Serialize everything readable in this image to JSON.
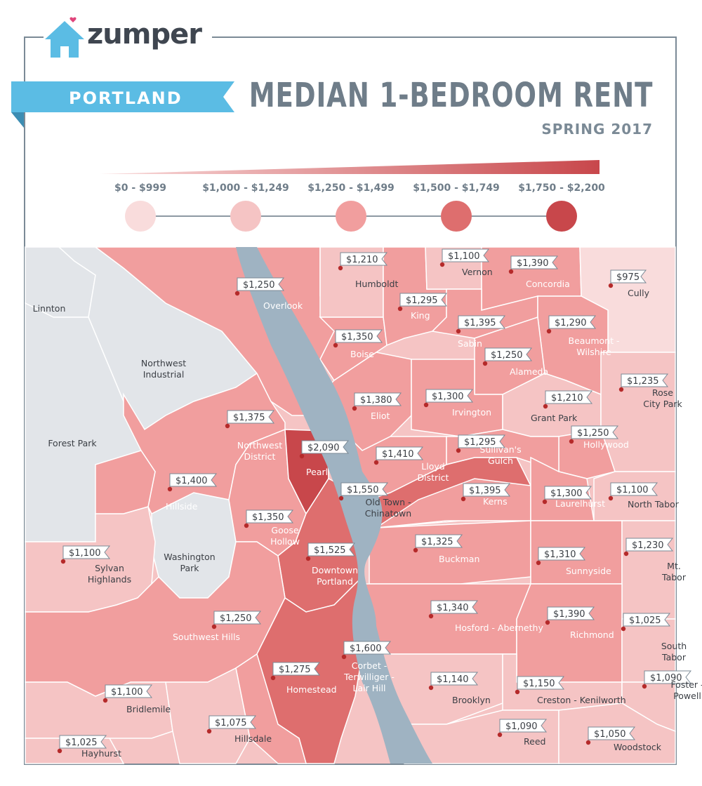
{
  "brand": {
    "name": "zumper"
  },
  "banner": {
    "city": "PORTLAND"
  },
  "header": {
    "title": "MEDIAN 1-BEDROOM RENT",
    "subtitle": "SPRING 2017"
  },
  "legend": {
    "bins": [
      {
        "label": "$0 - $999",
        "color": "#f9dcdc"
      },
      {
        "label": "$1,000 - $1,249",
        "color": "#f5c4c4"
      },
      {
        "label": "$1,250 - $1,499",
        "color": "#f19e9e"
      },
      {
        "label": "$1,500 - $1,749",
        "color": "#de6e6e"
      },
      {
        "label": "$1,750 - $2,200",
        "color": "#c8474b"
      }
    ]
  },
  "colors": {
    "neutral": "#e2e5e9",
    "river": "#9fb3c2",
    "brand_blue": "#5bbce4",
    "heading": "#6f7d89"
  },
  "unlabeled_areas": [
    "Linnton",
    "Northwest Industrial",
    "Forest Park",
    "Washington Park"
  ],
  "neighborhoods": [
    {
      "name": "Overlook",
      "price": "$1,250",
      "bin": 2
    },
    {
      "name": "Humboldt",
      "price": "$1,210",
      "bin": 1
    },
    {
      "name": "Vernon",
      "price": "$1,100",
      "bin": 1
    },
    {
      "name": "Concordia",
      "price": "$1,390",
      "bin": 2
    },
    {
      "name": "Cully",
      "price": "$975",
      "bin": 0
    },
    {
      "name": "King",
      "price": "$1,295",
      "bin": 2
    },
    {
      "name": "Boise",
      "price": "$1,350",
      "bin": 2
    },
    {
      "name": "Sabin",
      "price": "$1,395",
      "bin": 2
    },
    {
      "name": "Beaumont - Wilshire",
      "price": "$1,290",
      "bin": 2
    },
    {
      "name": "Alameda",
      "price": "$1,250",
      "bin": 2
    },
    {
      "name": "Eliot",
      "price": "$1,380",
      "bin": 2
    },
    {
      "name": "Irvington",
      "price": "$1,300",
      "bin": 2
    },
    {
      "name": "Rose City Park",
      "price": "$1,235",
      "bin": 1
    },
    {
      "name": "Grant Park",
      "price": "$1,210",
      "bin": 1
    },
    {
      "name": "Hollywood",
      "price": "$1,250",
      "bin": 2
    },
    {
      "name": "Northwest District",
      "price": "$1,375",
      "bin": 2
    },
    {
      "name": "Pearl",
      "price": "$2,090",
      "bin": 4
    },
    {
      "name": "Lloyd District",
      "price": "$1,410",
      "bin": 2
    },
    {
      "name": "Sullivan's Gulch",
      "price": "$1,295",
      "bin": 2
    },
    {
      "name": "Hillside",
      "price": "$1,400",
      "bin": 2
    },
    {
      "name": "Old Town - Chinatown",
      "price": "$1,550",
      "bin": 3
    },
    {
      "name": "Kerns",
      "price": "$1,395",
      "bin": 2
    },
    {
      "name": "Laurelhurst",
      "price": "$1,300",
      "bin": 2
    },
    {
      "name": "North Tabor",
      "price": "$1,100",
      "bin": 1
    },
    {
      "name": "Goose Hollow",
      "price": "$1,350",
      "bin": 2
    },
    {
      "name": "Downtown Portland",
      "price": "$1,525",
      "bin": 3
    },
    {
      "name": "Buckman",
      "price": "$1,325",
      "bin": 2
    },
    {
      "name": "Sunnyside",
      "price": "$1,310",
      "bin": 2
    },
    {
      "name": "Mt. Tabor",
      "price": "$1,230",
      "bin": 1
    },
    {
      "name": "Sylvan Highlands",
      "price": "$1,100",
      "bin": 1
    },
    {
      "name": "Hosford - Abernethy",
      "price": "$1,340",
      "bin": 2
    },
    {
      "name": "Richmond",
      "price": "$1,390",
      "bin": 2
    },
    {
      "name": "South Tabor",
      "price": "$1,025",
      "bin": 1
    },
    {
      "name": "Southwest Hills",
      "price": "$1,250",
      "bin": 2
    },
    {
      "name": "Corbet - Terwilliger - Lair Hill",
      "price": "$1,600",
      "bin": 3
    },
    {
      "name": "Homestead",
      "price": "$1,275",
      "bin": 2
    },
    {
      "name": "Brooklyn",
      "price": "$1,140",
      "bin": 1
    },
    {
      "name": "Creston - Kenilworth",
      "price": "$1,150",
      "bin": 1
    },
    {
      "name": "Foster - Powell",
      "price": "$1,090",
      "bin": 1
    },
    {
      "name": "Bridlemile",
      "price": "$1,100",
      "bin": 1
    },
    {
      "name": "Hillsdale",
      "price": "$1,075",
      "bin": 1
    },
    {
      "name": "Reed",
      "price": "$1,090",
      "bin": 1
    },
    {
      "name": "Woodstock",
      "price": "$1,050",
      "bin": 1
    },
    {
      "name": "Hayhurst",
      "price": "$1,025",
      "bin": 1
    }
  ]
}
